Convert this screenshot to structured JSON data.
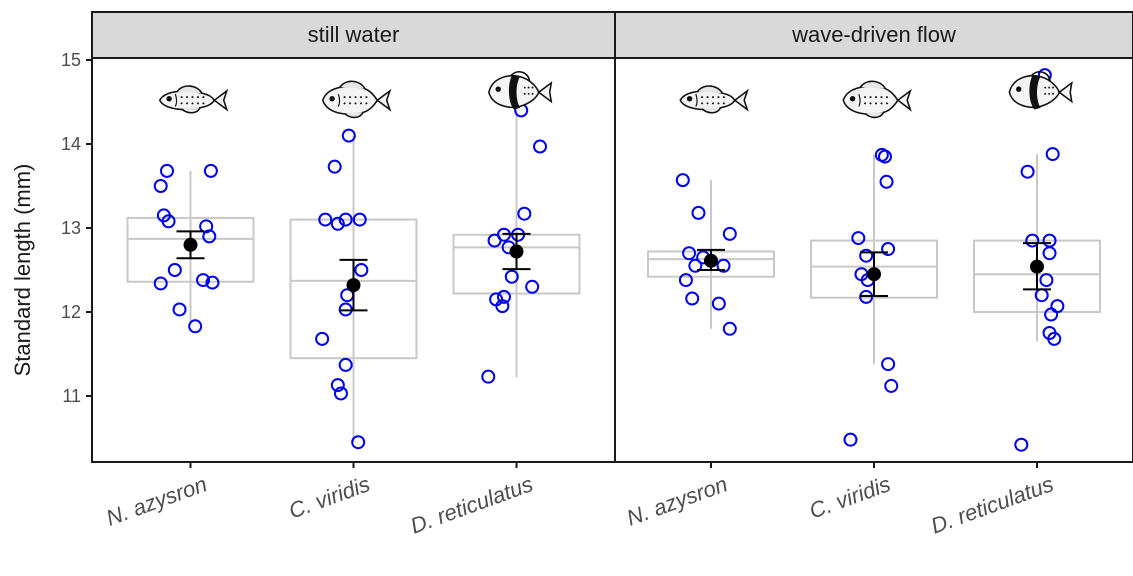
{
  "colors": {
    "point": "#0000ee",
    "box": "#c8c8c8",
    "mean": "#000000",
    "strip_fill": "#d9d9d9",
    "frame": "#1a1a1a"
  },
  "icons": [
    "fish-icon-slender",
    "fish-icon-deep",
    "fish-icon-banded"
  ],
  "chart_data": {
    "type": "box-jitter",
    "ylabel": "Standard length (mm)",
    "ylim": [
      10.2,
      15.0
    ],
    "yticks": [
      11,
      12,
      13,
      14,
      15
    ],
    "grid": false,
    "legend": "none",
    "categories": [
      "N. azysron",
      "C. viridis",
      "D. reticulatus"
    ],
    "panels": [
      {
        "label": "still water",
        "groups": [
          {
            "species": "N. azysron",
            "box": {
              "whisker_low": 11.85,
              "q1": 12.36,
              "median": 12.87,
              "q3": 13.12,
              "whisker_high": 13.68
            },
            "mean": 12.8,
            "se_low": 12.64,
            "se_high": 12.96,
            "points": [
              {
                "dx": -0.15,
                "y": 13.68
              },
              {
                "dx": 0.13,
                "y": 13.68
              },
              {
                "dx": -0.19,
                "y": 13.5
              },
              {
                "dx": -0.17,
                "y": 13.15
              },
              {
                "dx": -0.14,
                "y": 13.08
              },
              {
                "dx": 0.1,
                "y": 13.02
              },
              {
                "dx": 0.12,
                "y": 12.9
              },
              {
                "dx": -0.1,
                "y": 12.5
              },
              {
                "dx": 0.08,
                "y": 12.38
              },
              {
                "dx": 0.14,
                "y": 12.35
              },
              {
                "dx": -0.19,
                "y": 12.34
              },
              {
                "dx": -0.07,
                "y": 12.03
              },
              {
                "dx": 0.03,
                "y": 11.83
              }
            ]
          },
          {
            "species": "C. viridis",
            "box": {
              "whisker_low": 10.45,
              "q1": 11.45,
              "median": 12.37,
              "q3": 13.1,
              "whisker_high": 14.1
            },
            "mean": 12.32,
            "se_low": 12.02,
            "se_high": 12.62,
            "points": [
              {
                "dx": -0.03,
                "y": 14.1
              },
              {
                "dx": -0.12,
                "y": 13.73
              },
              {
                "dx": -0.18,
                "y": 13.1
              },
              {
                "dx": -0.05,
                "y": 13.1
              },
              {
                "dx": 0.04,
                "y": 13.1
              },
              {
                "dx": -0.1,
                "y": 13.05
              },
              {
                "dx": 0.05,
                "y": 12.5
              },
              {
                "dx": -0.04,
                "y": 12.2
              },
              {
                "dx": -0.05,
                "y": 12.03
              },
              {
                "dx": -0.2,
                "y": 11.68
              },
              {
                "dx": -0.05,
                "y": 11.37
              },
              {
                "dx": -0.1,
                "y": 11.13
              },
              {
                "dx": -0.08,
                "y": 11.03
              },
              {
                "dx": 0.03,
                "y": 10.45
              }
            ]
          },
          {
            "species": "D. reticulatus",
            "box": {
              "whisker_low": 11.22,
              "q1": 12.22,
              "median": 12.77,
              "q3": 12.92,
              "whisker_high": 14.4
            },
            "mean": 12.72,
            "se_low": 12.51,
            "se_high": 12.93,
            "points": [
              {
                "dx": 0.03,
                "y": 14.4
              },
              {
                "dx": 0.15,
                "y": 13.97
              },
              {
                "dx": 0.05,
                "y": 13.17
              },
              {
                "dx": -0.08,
                "y": 12.92
              },
              {
                "dx": 0.01,
                "y": 12.92
              },
              {
                "dx": -0.14,
                "y": 12.85
              },
              {
                "dx": -0.05,
                "y": 12.77
              },
              {
                "dx": 0.1,
                "y": 12.3
              },
              {
                "dx": -0.03,
                "y": 12.42
              },
              {
                "dx": -0.08,
                "y": 12.18
              },
              {
                "dx": -0.13,
                "y": 12.15
              },
              {
                "dx": -0.09,
                "y": 12.07
              },
              {
                "dx": -0.18,
                "y": 11.23
              }
            ]
          }
        ]
      },
      {
        "label": "wave-driven flow",
        "groups": [
          {
            "species": "N. azysron",
            "box": {
              "whisker_low": 11.8,
              "q1": 12.42,
              "median": 12.63,
              "q3": 12.72,
              "whisker_high": 13.57
            },
            "mean": 12.61,
            "se_low": 12.5,
            "se_high": 12.74,
            "points": [
              {
                "dx": -0.18,
                "y": 13.57
              },
              {
                "dx": -0.08,
                "y": 13.18
              },
              {
                "dx": 0.12,
                "y": 12.93
              },
              {
                "dx": -0.14,
                "y": 12.7
              },
              {
                "dx": -0.05,
                "y": 12.65
              },
              {
                "dx": 0.08,
                "y": 12.55
              },
              {
                "dx": -0.1,
                "y": 12.55
              },
              {
                "dx": -0.16,
                "y": 12.38
              },
              {
                "dx": -0.12,
                "y": 12.16
              },
              {
                "dx": 0.05,
                "y": 12.1
              },
              {
                "dx": 0.12,
                "y": 11.8
              }
            ]
          },
          {
            "species": "C. viridis",
            "box": {
              "whisker_low": 11.38,
              "q1": 12.17,
              "median": 12.54,
              "q3": 12.85,
              "whisker_high": 13.87
            },
            "mean": 12.45,
            "se_low": 12.19,
            "se_high": 12.71,
            "points": [
              {
                "dx": 0.05,
                "y": 13.87
              },
              {
                "dx": 0.07,
                "y": 13.85
              },
              {
                "dx": 0.08,
                "y": 13.55
              },
              {
                "dx": -0.1,
                "y": 12.88
              },
              {
                "dx": 0.09,
                "y": 12.75
              },
              {
                "dx": -0.05,
                "y": 12.67
              },
              {
                "dx": -0.08,
                "y": 12.45
              },
              {
                "dx": -0.04,
                "y": 12.38
              },
              {
                "dx": -0.05,
                "y": 12.18
              },
              {
                "dx": 0.09,
                "y": 11.38
              },
              {
                "dx": 0.11,
                "y": 11.12
              },
              {
                "dx": -0.15,
                "y": 10.48
              }
            ]
          },
          {
            "species": "D. reticulatus",
            "box": {
              "whisker_low": 11.65,
              "q1": 12.0,
              "median": 12.45,
              "q3": 12.85,
              "whisker_high": 13.88
            },
            "mean": 12.54,
            "se_low": 12.27,
            "se_high": 12.82,
            "points": [
              {
                "dx": 0.05,
                "y": 14.82
              },
              {
                "dx": 0.1,
                "y": 13.88
              },
              {
                "dx": -0.06,
                "y": 13.67
              },
              {
                "dx": -0.03,
                "y": 12.85
              },
              {
                "dx": 0.08,
                "y": 12.85
              },
              {
                "dx": 0.08,
                "y": 12.7
              },
              {
                "dx": 0.06,
                "y": 12.38
              },
              {
                "dx": 0.03,
                "y": 12.2
              },
              {
                "dx": 0.13,
                "y": 12.07
              },
              {
                "dx": 0.09,
                "y": 11.97
              },
              {
                "dx": 0.08,
                "y": 11.75
              },
              {
                "dx": 0.11,
                "y": 11.68
              },
              {
                "dx": -0.1,
                "y": 10.42
              }
            ]
          }
        ]
      }
    ]
  }
}
